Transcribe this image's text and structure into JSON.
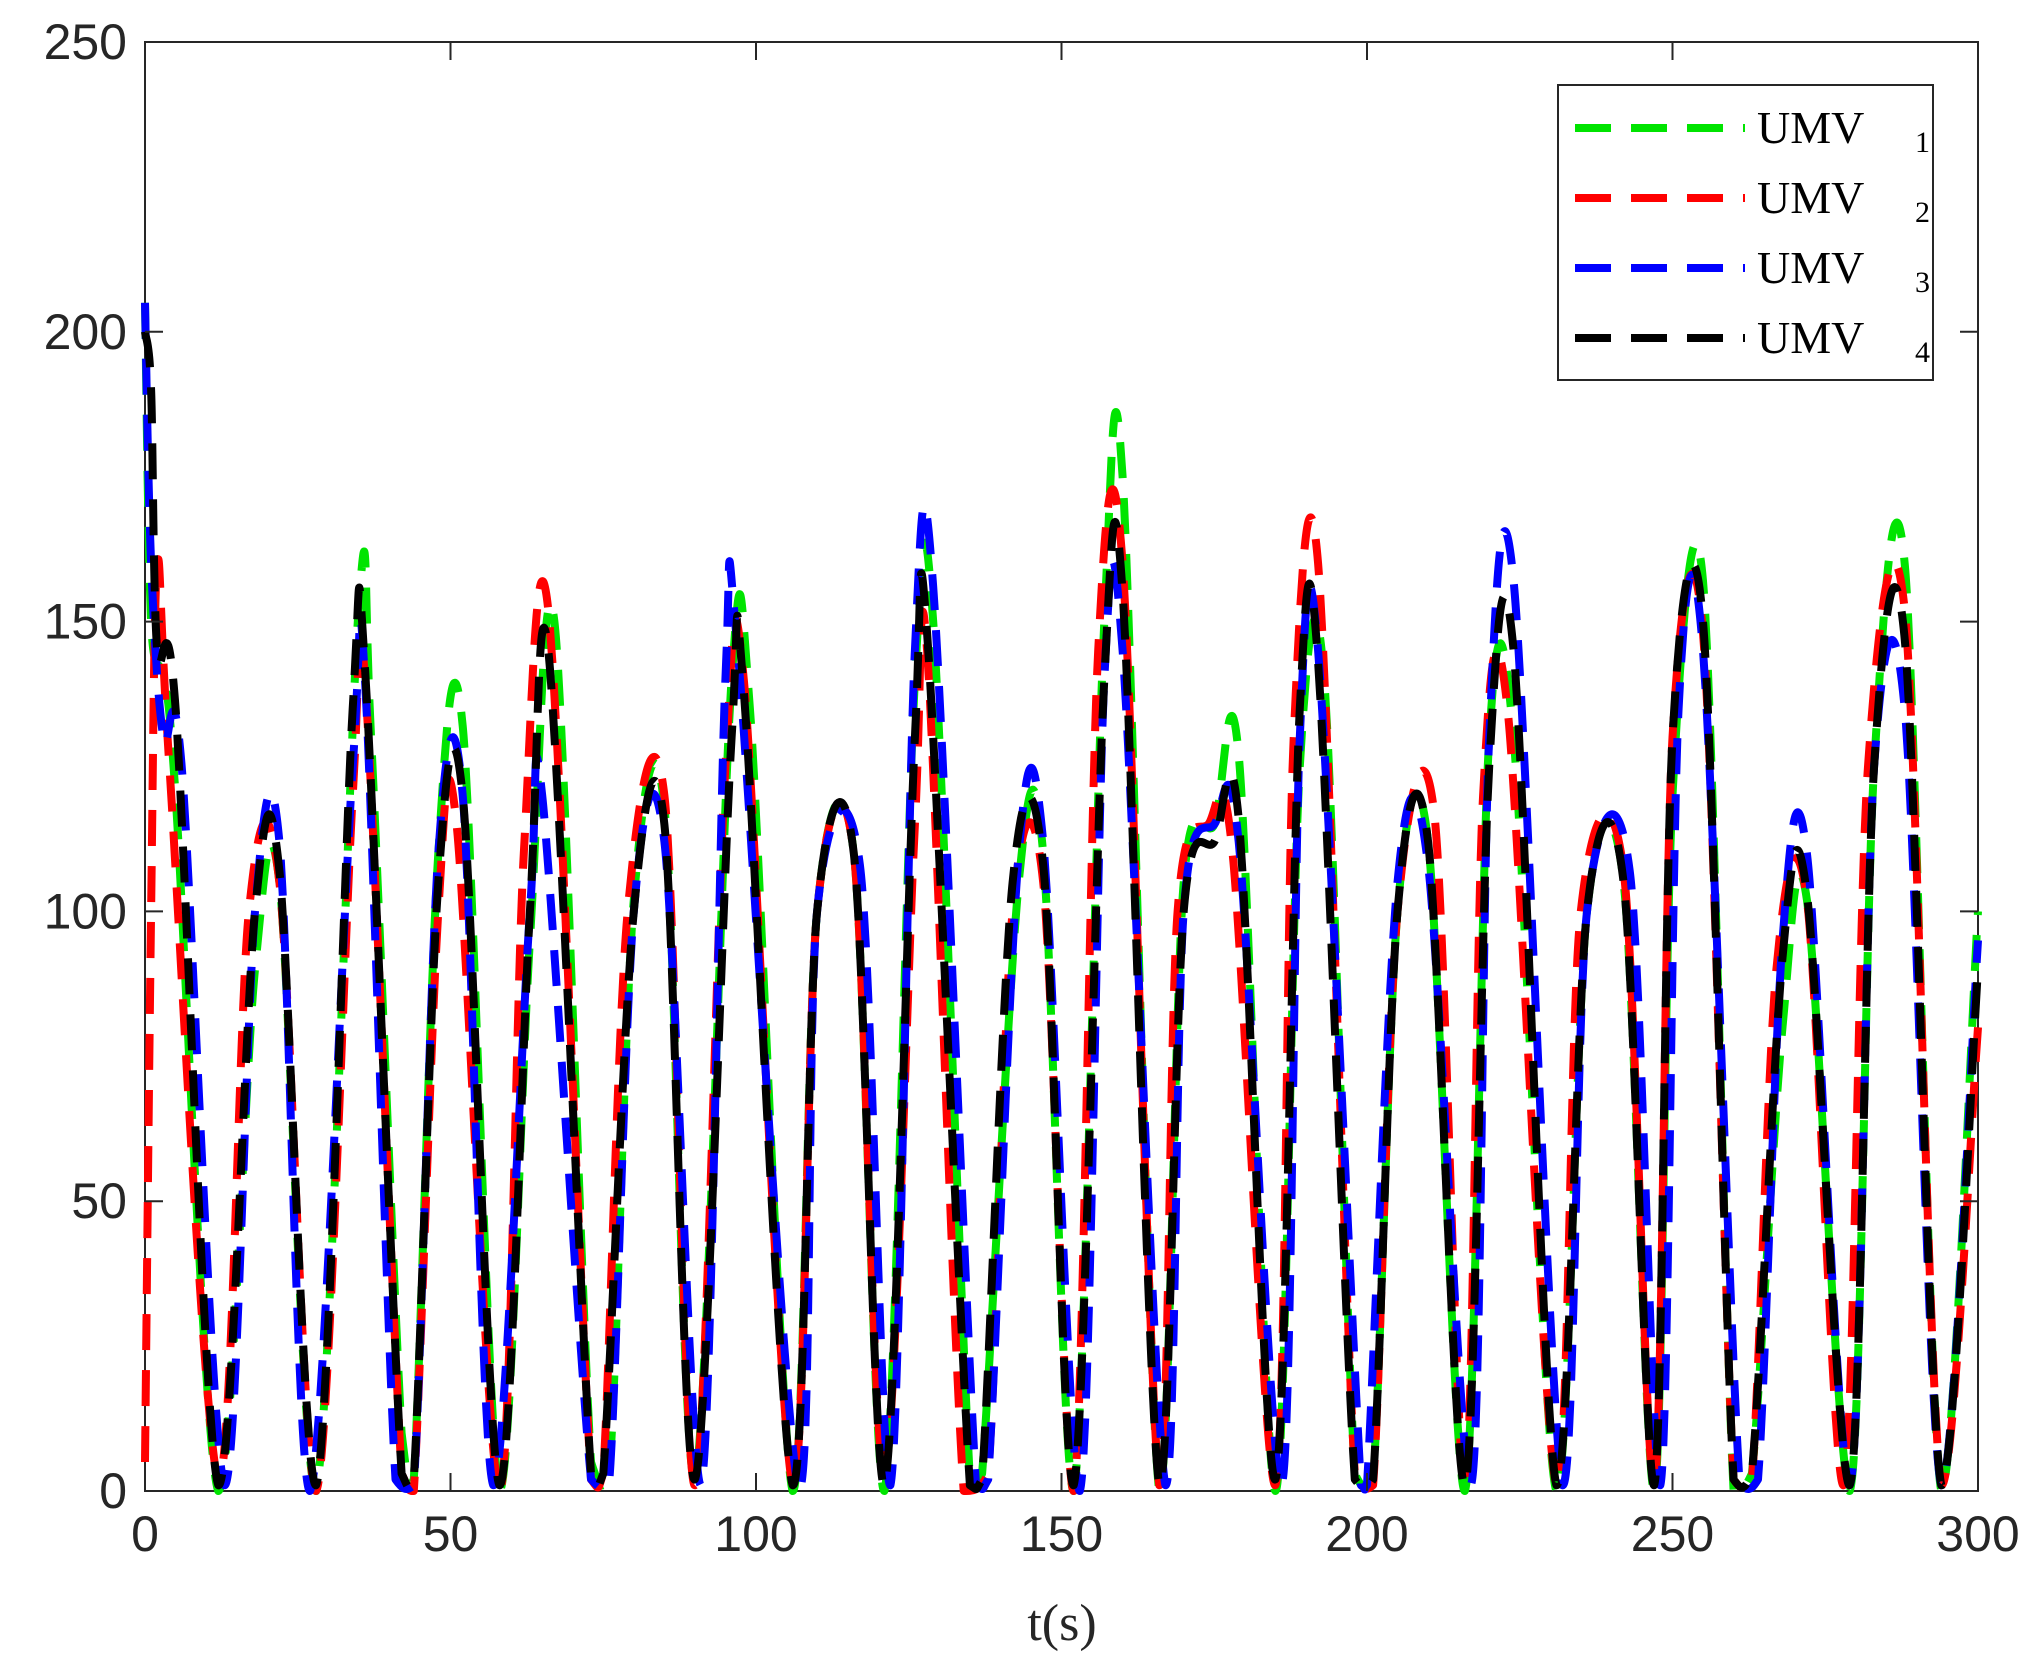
{
  "chart_data": {
    "type": "line",
    "title": "",
    "xlabel": "t(s)",
    "ylabel": "",
    "xlim": [
      0,
      300
    ],
    "ylim": [
      0,
      250
    ],
    "xticks": [
      "0",
      "50",
      "100",
      "150",
      "200",
      "250",
      "300"
    ],
    "yticks": [
      "0",
      "50",
      "100",
      "150",
      "200",
      "250"
    ],
    "grid": false,
    "legend_position": "top-right",
    "line_style": "dashed",
    "series": [
      {
        "name": "UMV",
        "subscript": "1",
        "color": "#00e400",
        "x": [
          0,
          1,
          3,
          5,
          12,
          18,
          22,
          28,
          35,
          37,
          42,
          44,
          48,
          52,
          58,
          63,
          67,
          73,
          76,
          80,
          85,
          90,
          96,
          99,
          106,
          110,
          116,
          121,
          126,
          129,
          135,
          137,
          143,
          147,
          152,
          157,
          160,
          166,
          170,
          175,
          179,
          185,
          189,
          193,
          198,
          201,
          205,
          210,
          216,
          220,
          224,
          231,
          236,
          242,
          247,
          250,
          255,
          260,
          263,
          268,
          272,
          279,
          283,
          288,
          294,
          300
        ],
        "y": [
          205,
          150,
          140,
          120,
          0,
          90,
          105,
          0,
          153,
          130,
          10,
          2,
          110,
          132,
          0,
          95,
          150,
          5,
          3,
          102,
          118,
          2,
          140,
          135,
          0,
          100,
          110,
          0,
          140,
          150,
          2,
          3,
          105,
          110,
          0,
          150,
          175,
          0,
          105,
          115,
          127,
          0,
          125,
          140,
          3,
          2,
          100,
          112,
          0,
          130,
          130,
          0,
          100,
          105,
          0,
          120,
          157,
          0,
          3,
          80,
          102,
          0,
          125,
          160,
          0,
          100
        ]
      },
      {
        "name": "UMV",
        "subscript": "2",
        "color": "#ff0000",
        "x": [
          0,
          1,
          2,
          4,
          12,
          17,
          22,
          28,
          34,
          36,
          42,
          44,
          48,
          51,
          58,
          62,
          66,
          73,
          75,
          79,
          85,
          90,
          95,
          98,
          106,
          110,
          116,
          121,
          126,
          128,
          134,
          138,
          142,
          147,
          152,
          156,
          160,
          166,
          169,
          174,
          178,
          185,
          188,
          192,
          198,
          201,
          205,
          211,
          216,
          219,
          223,
          231,
          235,
          242,
          247,
          250,
          255,
          260,
          263,
          267,
          272,
          278,
          282,
          288,
          294,
          300
        ],
        "y": [
          5,
          100,
          160,
          125,
          2,
          100,
          105,
          0,
          120,
          140,
          3,
          0,
          100,
          115,
          0,
          110,
          152,
          2,
          3,
          100,
          120,
          1,
          125,
          140,
          1,
          100,
          110,
          3,
          115,
          145,
          0,
          3,
          100,
          105,
          0,
          145,
          160,
          1,
          100,
          115,
          110,
          1,
          130,
          160,
          3,
          1,
          100,
          117,
          1,
          120,
          135,
          1,
          100,
          107,
          1,
          130,
          148,
          2,
          2,
          90,
          102,
          1,
          125,
          152,
          1,
          80
        ]
      },
      {
        "name": "UMV",
        "subscript": "3",
        "color": "#0000ff",
        "x": [
          0,
          1,
          3,
          6,
          13,
          18,
          22,
          27,
          34,
          36,
          41,
          44,
          48,
          52,
          57,
          63,
          65,
          73,
          76,
          80,
          85,
          91,
          95,
          97,
          107,
          110,
          117,
          122,
          126,
          129,
          136,
          138,
          143,
          147,
          153,
          157,
          160,
          167,
          170,
          175,
          179,
          186,
          189,
          192,
          199,
          200,
          205,
          210,
          217,
          220,
          224,
          232,
          236,
          243,
          248,
          251,
          255,
          261,
          264,
          268,
          272,
          279,
          283,
          288,
          294,
          300
        ],
        "y": [
          205,
          160,
          130,
          125,
          1,
          100,
          112,
          0,
          125,
          140,
          2,
          1,
          110,
          120,
          1,
          100,
          120,
          2,
          2,
          100,
          112,
          1,
          140,
          145,
          0,
          100,
          108,
          1,
          145,
          156,
          1,
          2,
          110,
          112,
          0,
          140,
          145,
          1,
          100,
          115,
          112,
          1,
          130,
          145,
          1,
          1,
          105,
          108,
          1,
          130,
          157,
          1,
          100,
          107,
          1,
          135,
          145,
          1,
          2,
          95,
          110,
          1,
          125,
          135,
          1,
          95
        ]
      },
      {
        "name": "UMV",
        "subscript": "4",
        "color": "#000000",
        "x": [
          0,
          1,
          2,
          5,
          12,
          18,
          22,
          28,
          34,
          36,
          42,
          44,
          48,
          52,
          58,
          63,
          66,
          73,
          75,
          80,
          85,
          90,
          96,
          98,
          106,
          110,
          116,
          121,
          126,
          128,
          135,
          137,
          142,
          147,
          152,
          157,
          160,
          166,
          170,
          175,
          179,
          185,
          189,
          192,
          198,
          201,
          205,
          210,
          216,
          220,
          224,
          231,
          236,
          242,
          247,
          250,
          255,
          260,
          263,
          268,
          272,
          279,
          283,
          288,
          294,
          300
        ],
        "y": [
          200,
          190,
          145,
          135,
          1,
          100,
          107,
          1,
          135,
          142,
          3,
          2,
          105,
          120,
          1,
          100,
          145,
          3,
          3,
          100,
          115,
          2,
          130,
          138,
          1,
          100,
          110,
          1,
          130,
          148,
          1,
          2,
          105,
          108,
          1,
          140,
          155,
          1,
          100,
          112,
          116,
          2,
          135,
          143,
          2,
          2,
          100,
          112,
          1,
          125,
          145,
          1,
          100,
          105,
          1,
          130,
          150,
          2,
          3,
          92,
          103,
          1,
          125,
          147,
          1,
          90
        ]
      }
    ]
  }
}
